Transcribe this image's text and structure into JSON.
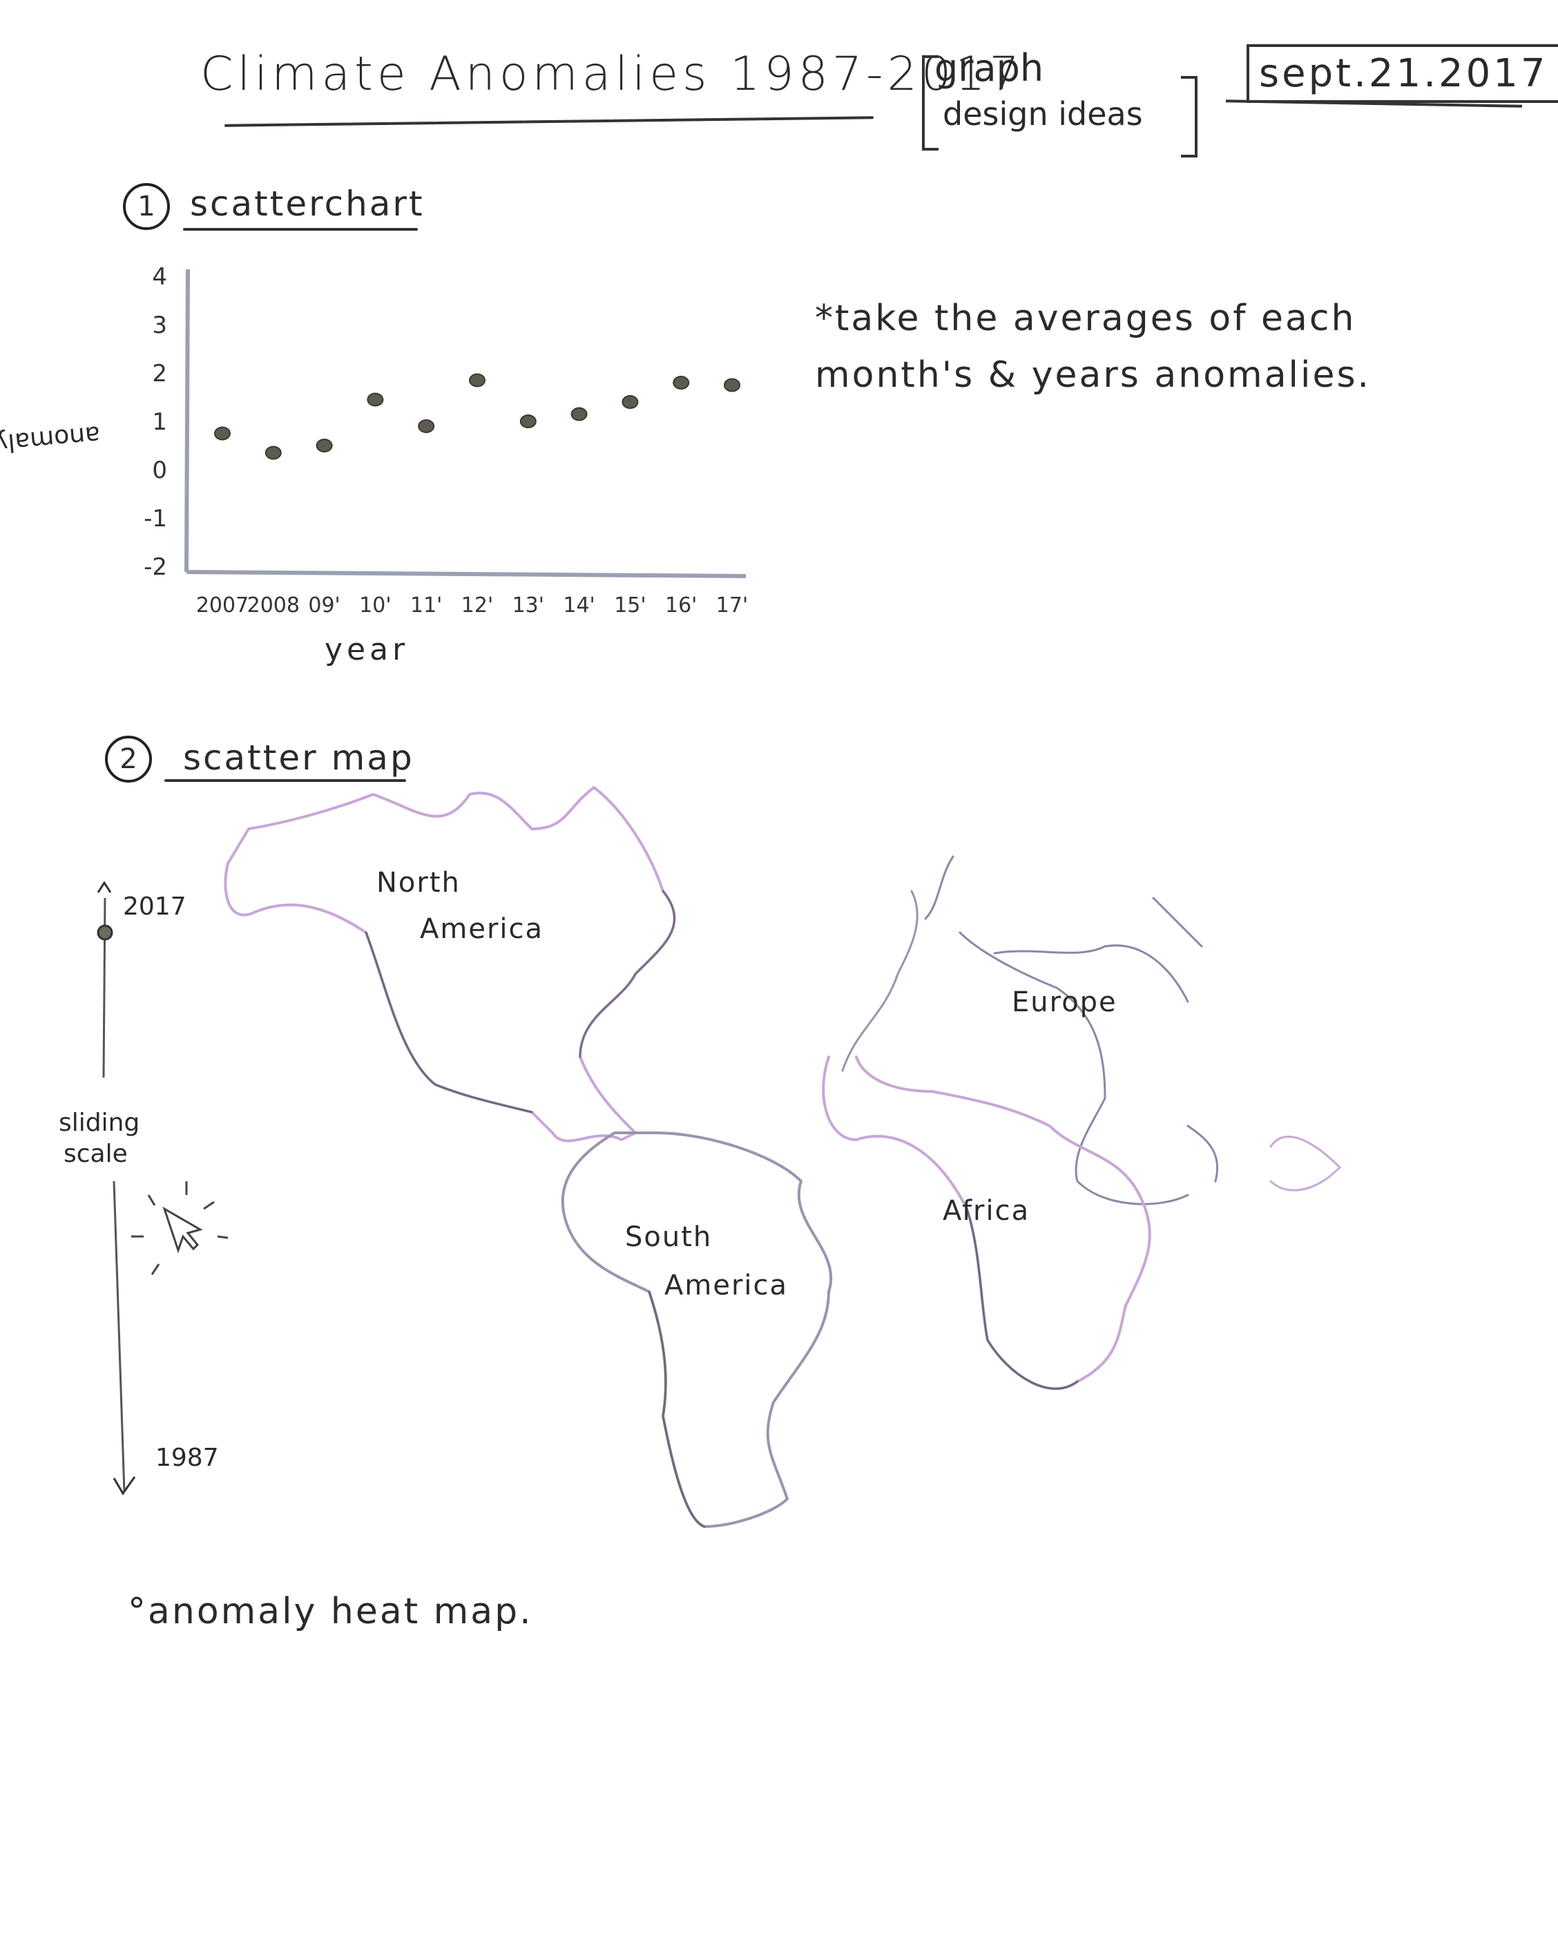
{
  "header": {
    "title": "Climate Anomalies 1987-2017",
    "note_line1": "graph",
    "note_line2": "design ideas",
    "date": "sept.21.2017"
  },
  "section1": {
    "number": "1",
    "label": "scatterchart",
    "note": "*take the averages of each month's & years anomalies."
  },
  "chart_data": {
    "type": "scatter",
    "xlabel": "year",
    "ylabel": "anomaly",
    "x": [
      "2007",
      "2008",
      "09'",
      "10'",
      "11'",
      "12'",
      "13'",
      "14'",
      "15'",
      "16'",
      "17'"
    ],
    "y": [
      0.75,
      0.35,
      0.5,
      1.45,
      0.9,
      1.85,
      1.0,
      1.15,
      1.4,
      1.8,
      1.75
    ],
    "yticks": [
      "4",
      "3",
      "2",
      "1",
      "0",
      "-1",
      "-2"
    ],
    "ylim": [
      -2,
      4
    ]
  },
  "section2": {
    "number": "2",
    "label": "scatter map",
    "slider_top": "2017",
    "slider_bottom": "1987",
    "slider_label_1": "sliding",
    "slider_label_2": "scale",
    "continents": {
      "na1": "North",
      "na2": "America",
      "sa1": "South",
      "sa2": "America",
      "eu": "Europe",
      "af": "Africa"
    }
  },
  "footer": {
    "note": "°anomaly heat map."
  }
}
